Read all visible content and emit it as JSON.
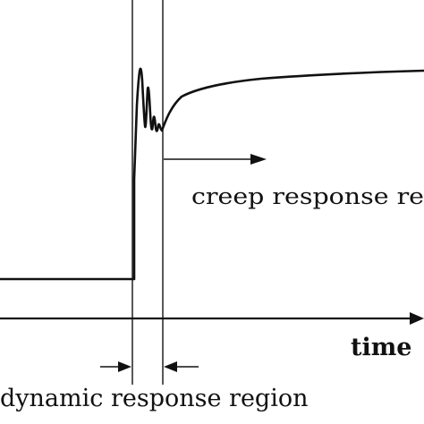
{
  "labels": {
    "creep": "creep response re",
    "time": "time",
    "dynamic": "dynamic response region"
  },
  "colors": {
    "ink": "#111111",
    "background": "#ffffff"
  }
}
